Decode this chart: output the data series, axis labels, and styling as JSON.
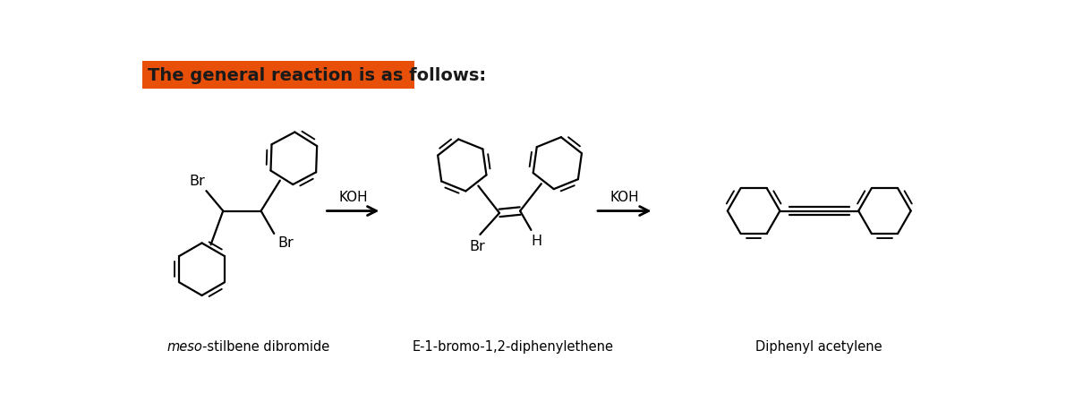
{
  "title": "The general reaction is as follows:",
  "title_bg": "#E8500A",
  "title_color": "#1a1a1a",
  "title_fontsize": 14,
  "bg_color": "#ffffff",
  "label1_italic": "meso",
  "label1_rest": "-stilbene dibromide",
  "label2": "E-1-bromo-1,2-diphenylethene",
  "label3": "Diphenyl acetylene",
  "reagent1": "KOH",
  "reagent2": "KOH",
  "label_fontsize": 10.5,
  "reagent_fontsize": 11
}
